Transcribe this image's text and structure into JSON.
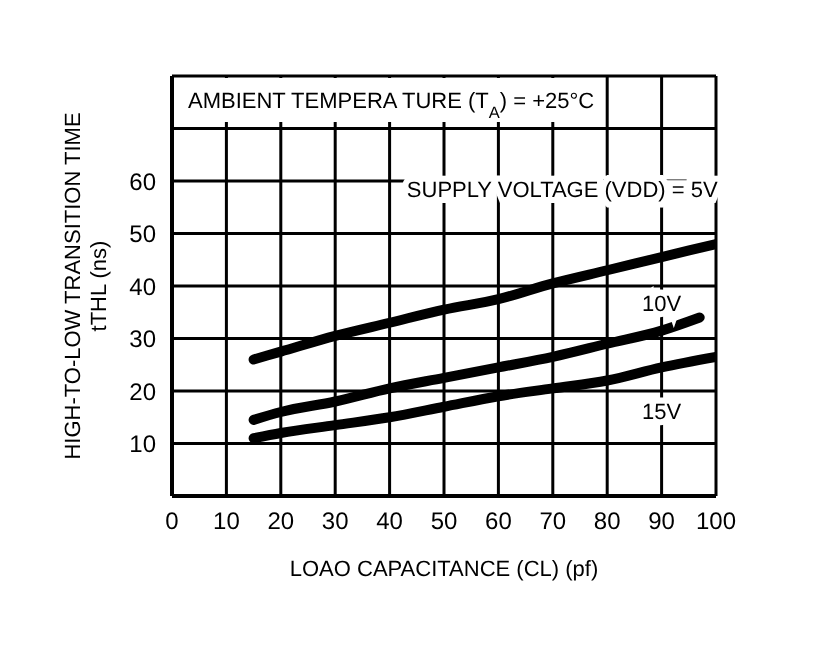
{
  "chart_data": {
    "type": "line",
    "title": "AMBIENT TEMPERA TURE (T$_{A}$) = +25°C",
    "xlabel": "LOAO CAPACITANCE (CL) (pf)",
    "ylabel": "HIGH-TO-LOW TRANSITION TIME\ntTHL (ns)",
    "xlim": [
      0,
      100
    ],
    "xticks": [
      0,
      10,
      20,
      30,
      40,
      50,
      60,
      70,
      80,
      90,
      100
    ],
    "ylim": [
      0,
      80
    ],
    "yticks": [
      10,
      20,
      30,
      40,
      50,
      60,
      {
        "value": 70,
        "label": null
      },
      {
        "value": 80,
        "label": null
      }
    ],
    "grid": true,
    "marker": "none",
    "line_style": "solid",
    "x": [
      15,
      20,
      30,
      40,
      50,
      60,
      70,
      80,
      90,
      100
    ],
    "series": [
      {
        "name": "SUPPLY VOLTAGE (VDD) = 5V",
        "color": "#000000",
        "values": [
          26,
          27.5,
          30.5,
          33,
          35.5,
          37.5,
          40.5,
          43,
          45.5,
          48
        ]
      },
      {
        "name": "10V",
        "color": "#000000",
        "x": [
          15,
          20,
          30,
          40,
          50,
          60,
          70,
          80,
          90,
          97
        ],
        "values": [
          14.5,
          16,
          18,
          20.5,
          22.5,
          24.5,
          26.5,
          29,
          31.5,
          34
        ]
      },
      {
        "name": "15V",
        "color": "#000000",
        "values": [
          11,
          12,
          13.5,
          15,
          17,
          19,
          20.5,
          22,
          24.5,
          26.5
        ]
      }
    ]
  }
}
